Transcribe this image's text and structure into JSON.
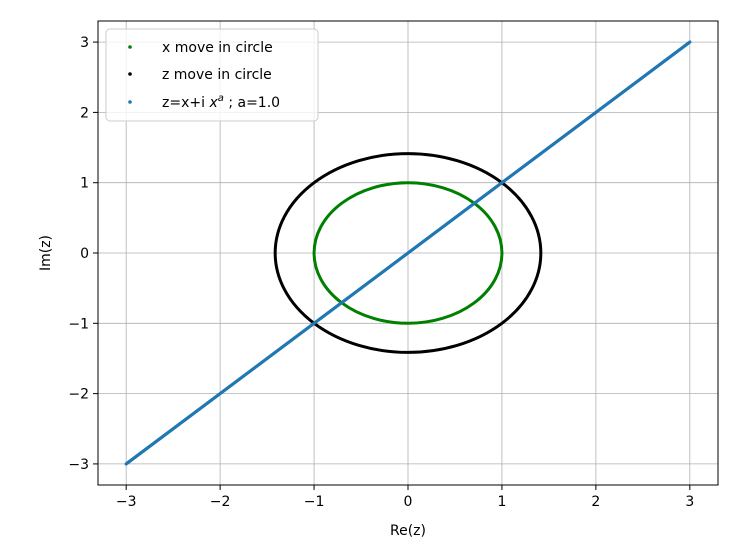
{
  "chart_data": {
    "type": "scatter",
    "title": "",
    "xlabel": "Re(z)",
    "ylabel": "Im(z)",
    "xlim": [
      -3.3,
      3.3
    ],
    "ylim": [
      -3.3,
      3.3
    ],
    "grid": true,
    "legend_position": "top-left",
    "xticks": [
      -3,
      -2,
      -1,
      0,
      1,
      2,
      3
    ],
    "yticks": [
      -3,
      -2,
      -1,
      0,
      1,
      2,
      3
    ],
    "xtick_labels": [
      "−3",
      "−2",
      "−1",
      "0",
      "1",
      "2",
      "3"
    ],
    "ytick_labels": [
      "−3",
      "−2",
      "−1",
      "0",
      "1",
      "2",
      "3"
    ],
    "series": [
      {
        "name": "x move in circle",
        "color": "#008000",
        "shape": "circle",
        "center": [
          0,
          0
        ],
        "radius": 1.0
      },
      {
        "name": "z move in circle",
        "color": "#000000",
        "shape": "circle",
        "center": [
          0,
          0
        ],
        "radius": 1.414
      },
      {
        "name": "z=x+i x^a ; a=1.0",
        "color": "#1f77b4",
        "shape": "line",
        "from": [
          -3,
          -3
        ],
        "to": [
          3,
          3
        ]
      }
    ],
    "legend": {
      "entry1": "x move in circle",
      "entry2": "z move in circle",
      "entry3_prefix": "z=x+i ",
      "entry3_var": "x",
      "entry3_sup": "a",
      "entry3_suffix": " ; a=1.0"
    }
  }
}
